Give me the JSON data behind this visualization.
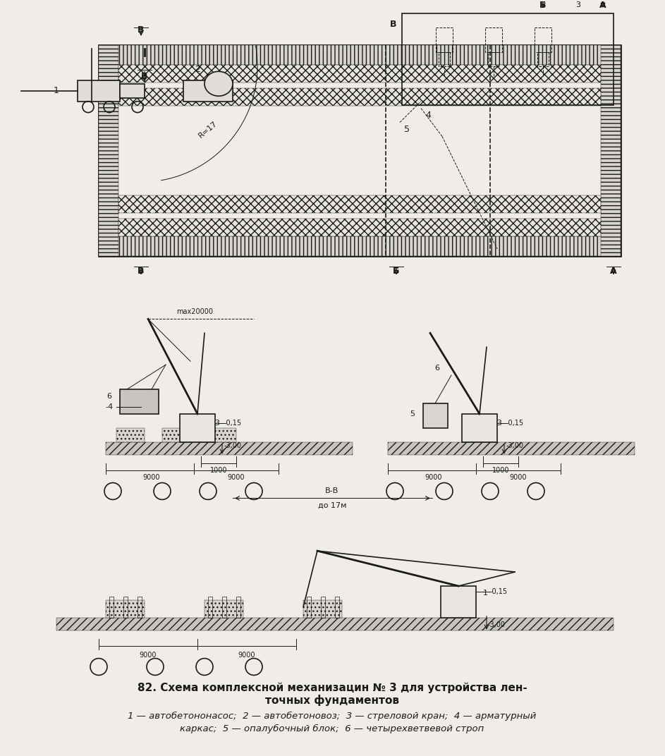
{
  "title_line1": "82. Схема комплексной механизацин № 3 для устройства лен-",
  "title_line2": "точных фундаментов",
  "legend": "1 — автобетононасос;  2 — автобетоновоз;  3 — стреловой кран;  4 — арматурный",
  "legend2": "каркас;  5 — опалубочный блок;  6 — четырехветвевой строп",
  "bg_color": "#f0ede8",
  "line_color": "#1a1a1a",
  "font_color": "#1a1a1a"
}
